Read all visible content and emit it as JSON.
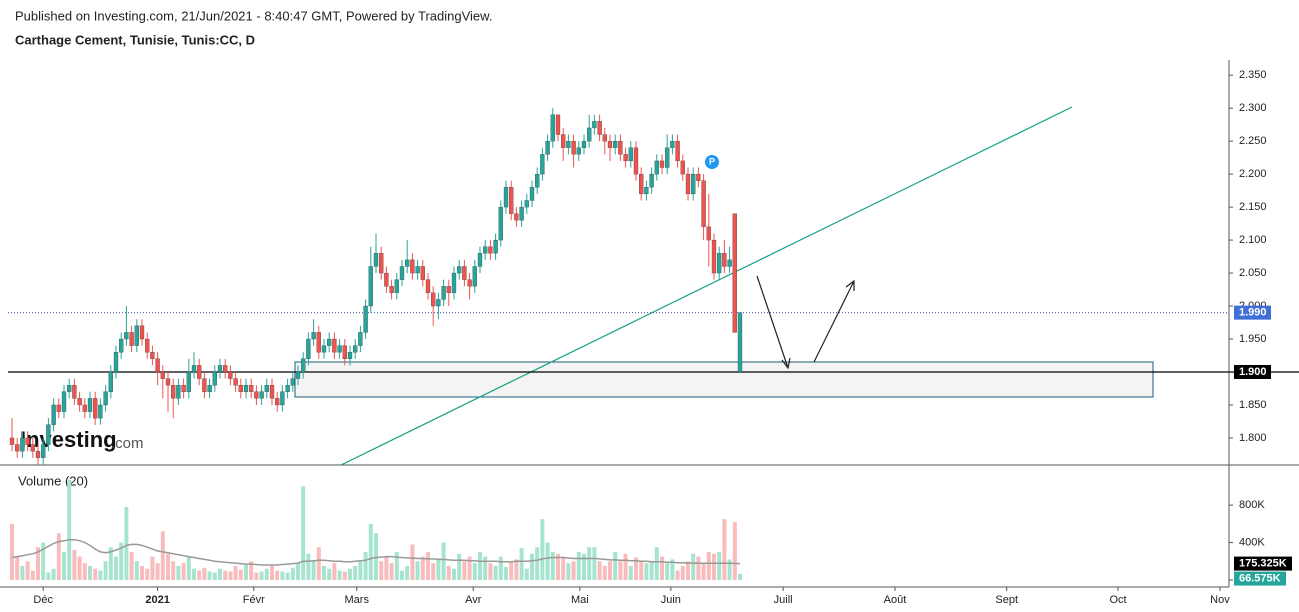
{
  "header": {
    "published": "Published on Investing.com, 21/Jun/2021 - 8:40:47 GMT, Powered by TradingView.",
    "symbol": "Carthage Cement, Tunisie, Tunis:CC, D"
  },
  "chart_data": [
    {
      "type": "candlestick",
      "candles": [
        [
          1.8,
          1.83,
          1.78,
          1.79
        ],
        [
          1.79,
          1.8,
          1.77,
          1.78
        ],
        [
          1.78,
          1.81,
          1.77,
          1.8
        ],
        [
          1.8,
          1.81,
          1.78,
          1.79
        ],
        [
          1.79,
          1.8,
          1.77,
          1.78
        ],
        [
          1.78,
          1.79,
          1.76,
          1.77
        ],
        [
          1.77,
          1.8,
          1.76,
          1.79
        ],
        [
          1.79,
          1.83,
          1.78,
          1.82
        ],
        [
          1.82,
          1.86,
          1.81,
          1.85
        ],
        [
          1.85,
          1.86,
          1.83,
          1.84
        ],
        [
          1.84,
          1.88,
          1.83,
          1.87
        ],
        [
          1.87,
          1.89,
          1.86,
          1.88
        ],
        [
          1.88,
          1.89,
          1.85,
          1.86
        ],
        [
          1.86,
          1.87,
          1.84,
          1.85
        ],
        [
          1.85,
          1.86,
          1.83,
          1.84
        ],
        [
          1.84,
          1.87,
          1.83,
          1.86
        ],
        [
          1.86,
          1.87,
          1.82,
          1.83
        ],
        [
          1.83,
          1.86,
          1.82,
          1.85
        ],
        [
          1.85,
          1.88,
          1.84,
          1.87
        ],
        [
          1.87,
          1.91,
          1.86,
          1.9
        ],
        [
          1.9,
          1.94,
          1.89,
          1.93
        ],
        [
          1.93,
          1.96,
          1.92,
          1.95
        ],
        [
          1.95,
          2.0,
          1.94,
          1.96
        ],
        [
          1.96,
          1.97,
          1.93,
          1.94
        ],
        [
          1.94,
          1.98,
          1.93,
          1.97
        ],
        [
          1.97,
          1.98,
          1.94,
          1.95
        ],
        [
          1.95,
          1.96,
          1.92,
          1.93
        ],
        [
          1.93,
          1.94,
          1.91,
          1.92
        ],
        [
          1.92,
          1.93,
          1.88,
          1.9
        ],
        [
          1.9,
          1.91,
          1.86,
          1.89
        ],
        [
          1.89,
          1.9,
          1.84,
          1.88
        ],
        [
          1.88,
          1.89,
          1.83,
          1.86
        ],
        [
          1.86,
          1.89,
          1.85,
          1.88
        ],
        [
          1.88,
          1.89,
          1.86,
          1.87
        ],
        [
          1.87,
          1.92,
          1.86,
          1.9
        ],
        [
          1.9,
          1.93,
          1.89,
          1.91
        ],
        [
          1.91,
          1.92,
          1.88,
          1.89
        ],
        [
          1.89,
          1.9,
          1.86,
          1.87
        ],
        [
          1.87,
          1.89,
          1.86,
          1.88
        ],
        [
          1.88,
          1.91,
          1.87,
          1.9
        ],
        [
          1.9,
          1.92,
          1.89,
          1.91
        ],
        [
          1.91,
          1.92,
          1.89,
          1.9
        ],
        [
          1.9,
          1.91,
          1.88,
          1.89
        ],
        [
          1.89,
          1.9,
          1.87,
          1.88
        ],
        [
          1.88,
          1.89,
          1.86,
          1.87
        ],
        [
          1.87,
          1.89,
          1.86,
          1.88
        ],
        [
          1.88,
          1.89,
          1.86,
          1.87
        ],
        [
          1.87,
          1.88,
          1.85,
          1.86
        ],
        [
          1.86,
          1.88,
          1.85,
          1.87
        ],
        [
          1.87,
          1.89,
          1.86,
          1.88
        ],
        [
          1.88,
          1.89,
          1.85,
          1.86
        ],
        [
          1.86,
          1.87,
          1.84,
          1.85
        ],
        [
          1.85,
          1.88,
          1.84,
          1.87
        ],
        [
          1.87,
          1.89,
          1.86,
          1.88
        ],
        [
          1.88,
          1.9,
          1.87,
          1.89
        ],
        [
          1.89,
          1.91,
          1.88,
          1.9
        ],
        [
          1.9,
          1.93,
          1.89,
          1.92
        ],
        [
          1.92,
          1.96,
          1.91,
          1.95
        ],
        [
          1.95,
          1.98,
          1.94,
          1.96
        ],
        [
          1.96,
          1.97,
          1.92,
          1.93
        ],
        [
          1.93,
          1.95,
          1.92,
          1.94
        ],
        [
          1.94,
          1.96,
          1.93,
          1.95
        ],
        [
          1.95,
          1.96,
          1.92,
          1.93
        ],
        [
          1.93,
          1.95,
          1.92,
          1.94
        ],
        [
          1.94,
          1.95,
          1.91,
          1.92
        ],
        [
          1.92,
          1.94,
          1.91,
          1.93
        ],
        [
          1.93,
          1.95,
          1.92,
          1.94
        ],
        [
          1.94,
          1.97,
          1.93,
          1.96
        ],
        [
          1.96,
          2.01,
          1.95,
          2.0
        ],
        [
          2.0,
          2.09,
          1.99,
          2.06
        ],
        [
          2.06,
          2.11,
          2.05,
          2.08
        ],
        [
          2.08,
          2.09,
          2.04,
          2.05
        ],
        [
          2.05,
          2.06,
          2.02,
          2.03
        ],
        [
          2.03,
          2.04,
          2.01,
          2.02
        ],
        [
          2.02,
          2.05,
          2.01,
          2.04
        ],
        [
          2.04,
          2.07,
          2.03,
          2.06
        ],
        [
          2.06,
          2.1,
          2.05,
          2.07
        ],
        [
          2.07,
          2.08,
          2.04,
          2.05
        ],
        [
          2.05,
          2.07,
          2.04,
          2.06
        ],
        [
          2.06,
          2.07,
          2.03,
          2.04
        ],
        [
          2.04,
          2.05,
          2.01,
          2.02
        ],
        [
          2.02,
          2.03,
          1.97,
          2.0
        ],
        [
          2.0,
          2.02,
          1.98,
          2.01
        ],
        [
          2.01,
          2.04,
          2.0,
          2.03
        ],
        [
          2.03,
          2.04,
          2.0,
          2.02
        ],
        [
          2.02,
          2.06,
          2.01,
          2.05
        ],
        [
          2.05,
          2.07,
          2.04,
          2.06
        ],
        [
          2.06,
          2.07,
          2.03,
          2.04
        ],
        [
          2.04,
          2.05,
          2.01,
          2.03
        ],
        [
          2.03,
          2.07,
          2.02,
          2.06
        ],
        [
          2.06,
          2.09,
          2.05,
          2.08
        ],
        [
          2.08,
          2.1,
          2.07,
          2.09
        ],
        [
          2.09,
          2.1,
          2.07,
          2.08
        ],
        [
          2.08,
          2.11,
          2.07,
          2.1
        ],
        [
          2.1,
          2.16,
          2.09,
          2.15
        ],
        [
          2.15,
          2.19,
          2.14,
          2.18
        ],
        [
          2.18,
          2.19,
          2.13,
          2.14
        ],
        [
          2.14,
          2.15,
          2.12,
          2.13
        ],
        [
          2.13,
          2.16,
          2.12,
          2.15
        ],
        [
          2.15,
          2.17,
          2.14,
          2.16
        ],
        [
          2.16,
          2.19,
          2.15,
          2.18
        ],
        [
          2.18,
          2.21,
          2.17,
          2.2
        ],
        [
          2.2,
          2.24,
          2.19,
          2.23
        ],
        [
          2.23,
          2.26,
          2.22,
          2.25
        ],
        [
          2.25,
          2.3,
          2.24,
          2.29
        ],
        [
          2.29,
          2.29,
          2.25,
          2.26
        ],
        [
          2.26,
          2.27,
          2.22,
          2.24
        ],
        [
          2.24,
          2.26,
          2.23,
          2.25
        ],
        [
          2.25,
          2.26,
          2.21,
          2.23
        ],
        [
          2.23,
          2.25,
          2.22,
          2.24
        ],
        [
          2.24,
          2.26,
          2.23,
          2.25
        ],
        [
          2.25,
          2.29,
          2.24,
          2.27
        ],
        [
          2.27,
          2.29,
          2.26,
          2.28
        ],
        [
          2.28,
          2.29,
          2.25,
          2.26
        ],
        [
          2.26,
          2.27,
          2.23,
          2.25
        ],
        [
          2.25,
          2.26,
          2.22,
          2.24
        ],
        [
          2.24,
          2.26,
          2.23,
          2.25
        ],
        [
          2.25,
          2.26,
          2.22,
          2.23
        ],
        [
          2.23,
          2.24,
          2.21,
          2.22
        ],
        [
          2.22,
          2.25,
          2.21,
          2.24
        ],
        [
          2.24,
          2.25,
          2.19,
          2.2
        ],
        [
          2.2,
          2.21,
          2.16,
          2.17
        ],
        [
          2.17,
          2.19,
          2.16,
          2.18
        ],
        [
          2.18,
          2.21,
          2.17,
          2.2
        ],
        [
          2.2,
          2.23,
          2.19,
          2.22
        ],
        [
          2.22,
          2.23,
          2.2,
          2.21
        ],
        [
          2.21,
          2.26,
          2.2,
          2.24
        ],
        [
          2.24,
          2.26,
          2.23,
          2.25
        ],
        [
          2.25,
          2.26,
          2.21,
          2.22
        ],
        [
          2.22,
          2.23,
          2.19,
          2.2
        ],
        [
          2.2,
          2.21,
          2.16,
          2.17
        ],
        [
          2.17,
          2.21,
          2.16,
          2.2
        ],
        [
          2.2,
          2.21,
          2.18,
          2.19
        ],
        [
          2.19,
          2.2,
          2.1,
          2.12
        ],
        [
          2.12,
          2.17,
          2.06,
          2.1
        ],
        [
          2.1,
          2.11,
          2.04,
          2.05
        ],
        [
          2.05,
          2.09,
          2.04,
          2.08
        ],
        [
          2.08,
          2.1,
          2.05,
          2.06
        ],
        [
          2.06,
          2.09,
          2.05,
          2.07
        ],
        [
          2.14,
          2.14,
          1.96,
          1.96
        ],
        [
          1.9,
          1.99,
          1.9,
          1.99
        ]
      ],
      "up_color": "#26a69a",
      "down_color": "#ef5350",
      "ylim": [
        1.759,
        2.373
      ],
      "yticks": [
        {
          "value": 1.8,
          "label": "1.800"
        },
        {
          "value": 1.85,
          "label": "1.850"
        },
        {
          "value": 1.9,
          "label": "1.900"
        },
        {
          "value": 1.95,
          "label": "1.950"
        },
        {
          "value": 2.0,
          "label": "2.000"
        },
        {
          "value": 2.05,
          "label": "2.050"
        },
        {
          "value": 2.1,
          "label": "2.100"
        },
        {
          "value": 2.15,
          "label": "2.150"
        },
        {
          "value": 2.2,
          "label": "2.200"
        },
        {
          "value": 2.25,
          "label": "2.250"
        },
        {
          "value": 2.3,
          "label": "2.300"
        },
        {
          "value": 2.35,
          "label": "2.350"
        }
      ],
      "xlim": [
        -0.77,
        233.85
      ],
      "xticks": [
        {
          "value": 6,
          "label": "Déc"
        },
        {
          "value": 28,
          "label": "2021"
        },
        {
          "value": 46.5,
          "label": "Févr"
        },
        {
          "value": 66.3,
          "label": "Mars"
        },
        {
          "value": 88.7,
          "label": "Avr"
        },
        {
          "value": 109.2,
          "label": "Mai"
        },
        {
          "value": 126.7,
          "label": "Juin"
        },
        {
          "value": 148.3,
          "label": "Juill"
        },
        {
          "value": 169.8,
          "label": "Août"
        },
        {
          "value": 191.3,
          "label": "Sept"
        },
        {
          "value": 212.7,
          "label": "Oct"
        },
        {
          "value": 232.3,
          "label": "Nov"
        }
      ],
      "last_price": {
        "value": 1.99,
        "label": "1.990"
      },
      "level": {
        "value": 1.9,
        "label": "1.900"
      },
      "marker": "P",
      "logo": "Investing",
      "logo_suffix": ".com"
    },
    {
      "type": "volume",
      "title": "Volume (20)",
      "values": [
        600,
        250,
        150,
        200,
        100,
        350,
        400,
        80,
        120,
        500,
        300,
        1070,
        320,
        250,
        180,
        150,
        120,
        100,
        200,
        350,
        250,
        400,
        780,
        300,
        200,
        150,
        120,
        250,
        180,
        520,
        280,
        200,
        150,
        180,
        250,
        120,
        100,
        130,
        90,
        80,
        120,
        100,
        90,
        150,
        110,
        160,
        200,
        80,
        90,
        120,
        150,
        100,
        90,
        80,
        130,
        180,
        1000,
        280,
        200,
        350,
        150,
        120,
        180,
        100,
        90,
        120,
        150,
        200,
        300,
        600,
        500,
        200,
        250,
        180,
        300,
        100,
        150,
        380,
        200,
        250,
        300,
        180,
        220,
        400,
        150,
        120,
        280,
        200,
        250,
        180,
        300,
        250,
        180,
        150,
        250,
        140,
        200,
        220,
        340,
        120,
        280,
        350,
        650,
        400,
        300,
        280,
        250,
        180,
        200,
        300,
        280,
        350,
        350,
        200,
        150,
        200,
        300,
        200,
        280,
        150,
        240,
        200,
        180,
        200,
        350,
        250,
        180,
        220,
        100,
        150,
        200,
        280,
        250,
        180,
        300,
        280,
        300,
        650,
        220,
        620,
        66.575
      ],
      "ma": [
        240,
        250,
        260,
        270,
        280,
        300,
        330,
        360,
        390,
        410,
        420,
        430,
        430,
        420,
        400,
        370,
        330,
        300,
        290,
        300,
        320,
        340,
        370,
        380,
        380,
        370,
        350,
        330,
        310,
        300,
        290,
        280,
        270,
        260,
        250,
        240,
        230,
        220,
        210,
        200,
        195,
        190,
        185,
        180,
        175,
        170,
        170,
        165,
        160,
        160,
        160,
        160,
        165,
        170,
        175,
        180,
        200,
        200,
        205,
        210,
        210,
        205,
        200,
        200,
        195,
        195,
        200,
        205,
        210,
        230,
        240,
        245,
        250,
        250,
        245,
        240,
        235,
        235,
        230,
        230,
        225,
        225,
        220,
        220,
        215,
        210,
        210,
        210,
        205,
        205,
        200,
        200,
        200,
        200,
        195,
        195,
        195,
        200,
        200,
        200,
        205,
        210,
        225,
        235,
        240,
        240,
        240,
        235,
        230,
        230,
        230,
        230,
        230,
        225,
        220,
        215,
        215,
        210,
        210,
        205,
        205,
        200,
        200,
        195,
        195,
        195,
        190,
        190,
        185,
        185,
        180,
        180,
        180,
        178,
        178,
        178,
        178,
        180,
        178,
        176,
        175.325
      ],
      "up_color": "#a6e4d0",
      "down_color": "#f8bcbc",
      "ma_color": "#999999",
      "last_color": "#26a69a",
      "ylim": [
        0,
        1100
      ],
      "yticks": [
        0,
        {
          "value": 400,
          "label": "400K"
        },
        {
          "value": 800,
          "label": "800K"
        }
      ],
      "ma_label": {
        "value": 175.325,
        "label": "175.325K"
      },
      "last_label": {
        "value": 66.575,
        "label": "66.575K"
      }
    }
  ]
}
